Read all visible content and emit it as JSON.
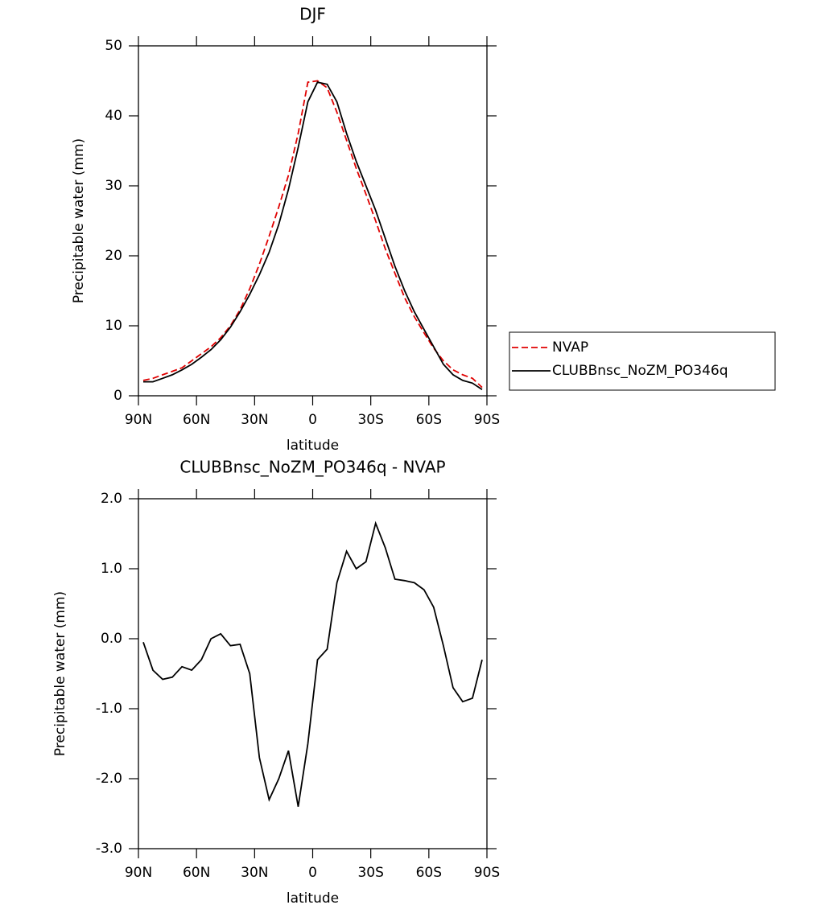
{
  "chart_data": [
    {
      "type": "line",
      "title": "DJF",
      "xlabel": "latitude",
      "ylabel": "Precipitable water (mm)",
      "x": [
        87.5,
        82.5,
        77.5,
        72.5,
        67.5,
        62.5,
        57.5,
        52.5,
        47.5,
        42.5,
        37.5,
        32.5,
        27.5,
        22.5,
        17.5,
        12.5,
        7.5,
        2.5,
        -2.5,
        -7.5,
        -12.5,
        -17.5,
        -22.5,
        -27.5,
        -32.5,
        -37.5,
        -42.5,
        -47.5,
        -52.5,
        -57.5,
        -62.5,
        -67.5,
        -72.5,
        -77.5,
        -82.5,
        -87.5
      ],
      "series": [
        {
          "name": "NVAP",
          "color": "#e00000",
          "style": "dashed",
          "values": [
            2.2,
            2.5,
            3.0,
            3.5,
            4.0,
            5.0,
            6.0,
            7.0,
            8.3,
            10.0,
            12.3,
            15.3,
            18.8,
            22.8,
            27,
            31.5,
            37.5,
            44.8,
            45,
            44,
            40.5,
            36.5,
            32.5,
            28.8,
            25,
            21,
            17.5,
            14,
            11.3,
            9.0,
            6.8,
            5.0,
            3.7,
            3.0,
            2.5,
            1.2
          ]
        },
        {
          "name": "CLUBBnsc_NoZM_PO346q",
          "color": "#000000",
          "style": "solid",
          "values": [
            2.0,
            2.0,
            2.5,
            3.0,
            3.7,
            4.5,
            5.5,
            6.6,
            8.0,
            9.8,
            12.0,
            14.5,
            17.3,
            20.5,
            24.5,
            29.5,
            35.5,
            42,
            44.8,
            44.5,
            42,
            37.5,
            33.5,
            30,
            26.5,
            22.5,
            18.5,
            15,
            12,
            9.5,
            7,
            4.5,
            3,
            2.2,
            1.8,
            0.9
          ]
        }
      ],
      "xlim": [
        90,
        -90
      ],
      "xticks": [
        {
          "value": 90,
          "label": "90N"
        },
        {
          "value": 60,
          "label": "60N"
        },
        {
          "value": 30,
          "label": "30N"
        },
        0,
        {
          "value": -30,
          "label": "30S"
        },
        {
          "value": -60,
          "label": "60S"
        },
        {
          "value": -90,
          "label": "90S"
        }
      ],
      "ylim": [
        0,
        50
      ],
      "yticks": [
        0,
        10,
        20,
        30,
        40,
        50
      ],
      "legend": "right"
    },
    {
      "type": "line",
      "title": "CLUBBnsc_NoZM_PO346q - NVAP",
      "xlabel": "latitude",
      "ylabel": "Precipitable water (mm)",
      "x": [
        87.5,
        82.5,
        77.5,
        72.5,
        67.5,
        62.5,
        57.5,
        52.5,
        47.5,
        42.5,
        37.5,
        32.5,
        27.5,
        22.5,
        17.5,
        12.5,
        7.5,
        2.5,
        -2.5,
        -7.5,
        -12.5,
        -17.5,
        -22.5,
        -27.5,
        -32.5,
        -37.5,
        -42.5,
        -47.5,
        -52.5,
        -57.5,
        -62.5,
        -67.5,
        -72.5,
        -77.5,
        -82.5,
        -87.5
      ],
      "values": [
        -0.05,
        -0.45,
        -0.58,
        -0.55,
        -0.4,
        -0.45,
        -0.3,
        0.0,
        0.07,
        -0.1,
        -0.08,
        -0.5,
        -1.7,
        -2.3,
        -2.0,
        -1.6,
        -2.4,
        -1.5,
        -0.3,
        -0.15,
        0.8,
        1.25,
        1.0,
        1.1,
        1.65,
        1.3,
        0.85,
        0.83,
        0.8,
        0.7,
        0.45,
        -0.1,
        -0.7,
        -0.9,
        -0.85,
        -0.3
      ],
      "color": "#000000",
      "xlim": [
        90,
        -90
      ],
      "xticks": [
        {
          "value": 90,
          "label": "90N"
        },
        {
          "value": 60,
          "label": "60N"
        },
        {
          "value": 30,
          "label": "30N"
        },
        0,
        {
          "value": -30,
          "label": "30S"
        },
        {
          "value": -60,
          "label": "60S"
        },
        {
          "value": -90,
          "label": "90S"
        }
      ],
      "ylim": [
        -3,
        2
      ],
      "yticks": [
        {
          "value": -3,
          "label": "-3.0"
        },
        {
          "value": -2,
          "label": "-2.0"
        },
        {
          "value": -1,
          "label": "-1.0"
        },
        {
          "value": 0,
          "label": "0.0"
        },
        {
          "value": 1,
          "label": "1.0"
        },
        {
          "value": 2,
          "label": "2.0"
        }
      ]
    }
  ]
}
